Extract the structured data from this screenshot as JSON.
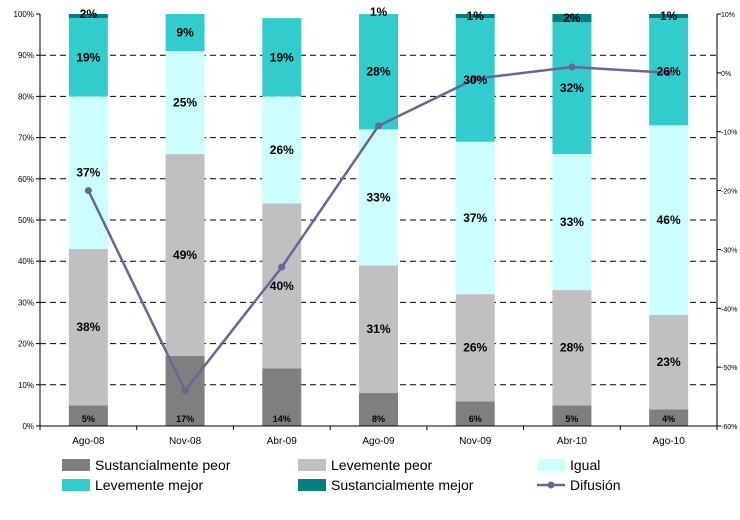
{
  "chart_data": {
    "type": "bar",
    "stacked": true,
    "title": "",
    "categories": [
      "Ago-08",
      "Nov-08",
      "Abr-09",
      "Ago-09",
      "Nov-09",
      "Abr-10",
      "Ago-10"
    ],
    "series": [
      {
        "name": "Sustancialmente peor",
        "color": "#7f7f7f",
        "values": [
          5,
          17,
          14,
          8,
          6,
          5,
          4
        ]
      },
      {
        "name": "Levemente peor",
        "color": "#c0c0c0",
        "values": [
          38,
          49,
          40,
          31,
          26,
          28,
          23
        ]
      },
      {
        "name": "Igual",
        "color": "#ccffff",
        "values": [
          37,
          25,
          26,
          33,
          37,
          33,
          46
        ]
      },
      {
        "name": "Levemente mejor",
        "color": "#33cccc",
        "values": [
          19,
          9,
          19,
          28,
          30,
          32,
          26
        ]
      },
      {
        "name": "Sustancialmente mejor",
        "color": "#008080",
        "values": [
          2,
          0,
          0,
          1,
          1,
          2,
          1
        ]
      }
    ],
    "data_labels": [
      [
        "5%",
        "38%",
        "37%",
        "19%",
        "2%"
      ],
      [
        "17%",
        "49%",
        "25%",
        "9%",
        ""
      ],
      [
        "14%",
        "40%",
        "26%",
        "19%",
        ""
      ],
      [
        "8%",
        "31%",
        "33%",
        "28%",
        "1%"
      ],
      [
        "6%",
        "26%",
        "37%",
        "30%",
        "1%"
      ],
      [
        "5%",
        "28%",
        "33%",
        "32%",
        "2%"
      ],
      [
        "4%",
        "23%",
        "46%",
        "26%",
        "1%"
      ]
    ],
    "line": {
      "name": "Difusión",
      "color": "#666699",
      "axis": "secondary",
      "values": [
        -20,
        -54,
        -33,
        -9,
        -1,
        1,
        0
      ]
    },
    "ylim": [
      0,
      100
    ],
    "yticks": [
      "0%",
      "10%",
      "20%",
      "30%",
      "40%",
      "50%",
      "60%",
      "70%",
      "80%",
      "90%",
      "100%"
    ],
    "y2lim": [
      -60,
      10
    ],
    "y2ticks": [
      "-60%",
      "-50%",
      "-40%",
      "-30%",
      "-20%",
      "-10%",
      "0%",
      "10%"
    ],
    "grid": true,
    "legend_position": "bottom"
  }
}
